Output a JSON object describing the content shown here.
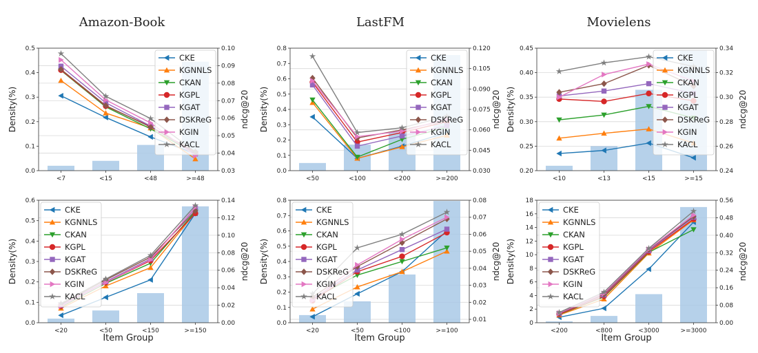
{
  "figure": {
    "column_titles": [
      "Amazon-Book",
      "LastFM",
      "Movielens"
    ],
    "xlabel": "Item Group",
    "ylabel_left": "Density(%)",
    "ylabel_right": "ndcg@20",
    "series_colors": {
      "CKE": "#1f77b4",
      "KGNNLS": "#ff7f0e",
      "CKAN": "#2ca02c",
      "KGPL": "#d62728",
      "KGAT": "#9467bd",
      "DSKReG": "#8c564b",
      "KGIN": "#e377c2",
      "KACL": "#7f7f7f"
    },
    "bar_color": "#a9c9e6"
  },
  "chart_data": [
    {
      "type": "bar+line",
      "dataset": "Amazon-Book",
      "row": "top",
      "categories": [
        "<7",
        "<15",
        "<48",
        ">=48"
      ],
      "bars": [
        0.02,
        0.04,
        0.105,
        0.445
      ],
      "ylim": [
        0,
        0.5
      ],
      "yticks": [
        "0.0",
        "0.1",
        "0.2",
        "0.3",
        "0.4",
        "0.5"
      ],
      "y2lim": [
        0.03,
        0.1
      ],
      "y2ticks": [
        "0.03",
        "0.04",
        "0.05",
        "0.06",
        "0.07",
        "0.08",
        "0.09",
        "0.10"
      ],
      "series": [
        {
          "name": "CKE",
          "values": [
            0.0728,
            0.0604,
            0.0493,
            0.0396
          ]
        },
        {
          "name": "KGNNLS",
          "values": [
            0.0815,
            0.0629,
            0.0544,
            0.0367
          ]
        },
        {
          "name": "CKAN",
          "values": [
            0.0873,
            0.0664,
            0.0539,
            0.0397
          ]
        },
        {
          "name": "KGPL",
          "values": [
            0.0875,
            0.0669,
            0.0552,
            0.0399
          ]
        },
        {
          "name": "KGAT",
          "values": [
            0.0897,
            0.0688,
            0.0555,
            0.0397
          ]
        },
        {
          "name": "DSKReG",
          "values": [
            0.0879,
            0.0672,
            0.0549,
            0.0407
          ]
        },
        {
          "name": "KGIN",
          "values": [
            0.0933,
            0.0704,
            0.0573,
            0.0385
          ]
        },
        {
          "name": "KACL",
          "values": [
            0.0969,
            0.0725,
            0.0598,
            0.0407
          ]
        }
      ],
      "legend": "top-right"
    },
    {
      "type": "bar+line",
      "dataset": "LastFM",
      "row": "top",
      "categories": [
        "<50",
        "<100",
        "<200",
        ">=200"
      ],
      "bars": [
        0.05,
        0.17,
        0.25,
        0.755
      ],
      "ylim": [
        0,
        0.8
      ],
      "yticks": [
        "0.0",
        "0.1",
        "0.2",
        "0.3",
        "0.4",
        "0.5",
        "0.6",
        "0.7",
        "0.8"
      ],
      "y2lim": [
        0.03,
        0.12
      ],
      "y2ticks": [
        "0.030",
        "0.045",
        "0.060",
        "0.075",
        "0.090",
        "0.105",
        "0.120"
      ],
      "series": [
        {
          "name": "CKE",
          "values": [
            0.0695,
            0.039,
            0.048,
            0.058
          ]
        },
        {
          "name": "KGNNLS",
          "values": [
            0.08,
            0.039,
            0.0475,
            0.056
          ]
        },
        {
          "name": "CKAN",
          "values": [
            0.082,
            0.04,
            0.053,
            0.062
          ]
        },
        {
          "name": "KGPL",
          "values": [
            0.095,
            0.051,
            0.058,
            0.066
          ]
        },
        {
          "name": "KGAT",
          "values": [
            0.093,
            0.048,
            0.0555,
            0.063
          ]
        },
        {
          "name": "DSKReG",
          "values": [
            0.098,
            0.054,
            0.06,
            0.067
          ]
        },
        {
          "name": "KGIN",
          "values": [
            0.096,
            0.055,
            0.059,
            0.068
          ]
        },
        {
          "name": "KACL",
          "values": [
            0.114,
            0.058,
            0.0615,
            0.07
          ]
        }
      ],
      "legend": "top-right"
    },
    {
      "type": "bar+line",
      "dataset": "Movielens",
      "row": "top",
      "categories": [
        "<10",
        "<13",
        "<15",
        ">=15"
      ],
      "bars": [
        0.21,
        0.25,
        0.365,
        0.445
      ],
      "ylim": [
        0.2,
        0.45
      ],
      "yticks": [
        "0.20",
        "0.25",
        "0.30",
        "0.35",
        "0.40",
        "0.45"
      ],
      "y2lim": [
        0.24,
        0.34
      ],
      "y2ticks": [
        "0.24",
        "0.26",
        "0.28",
        "0.30",
        "0.32",
        "0.34"
      ],
      "series": [
        {
          "name": "CKE",
          "values": [
            0.254,
            0.2565,
            0.2625,
            0.2505
          ]
        },
        {
          "name": "KGNNLS",
          "values": [
            0.2665,
            0.2705,
            0.274,
            0.2625
          ]
        },
        {
          "name": "CKAN",
          "values": [
            0.2815,
            0.2855,
            0.2925,
            0.283
          ]
        },
        {
          "name": "KGPL",
          "values": [
            0.2985,
            0.2965,
            0.303,
            0.297
          ]
        },
        {
          "name": "KGAT",
          "values": [
            0.301,
            0.305,
            0.311,
            0.303
          ]
        },
        {
          "name": "DSKReG",
          "values": [
            0.304,
            0.311,
            0.326,
            0.309
          ]
        },
        {
          "name": "KGIN",
          "values": [
            0.3,
            0.3185,
            0.327,
            0.313
          ]
        },
        {
          "name": "KACL",
          "values": [
            0.321,
            0.328,
            0.333,
            0.325
          ]
        }
      ],
      "legend": "top-right"
    },
    {
      "type": "bar+line",
      "dataset": "Amazon-Book",
      "row": "bottom",
      "categories": [
        "<20",
        "<50",
        "<150",
        ">=150"
      ],
      "bars": [
        0.02,
        0.06,
        0.145,
        0.57
      ],
      "xlabel": "Item Group",
      "ylim": [
        0,
        0.6
      ],
      "yticks": [
        "0.0",
        "0.1",
        "0.2",
        "0.3",
        "0.4",
        "0.5",
        "0.6"
      ],
      "y2lim": [
        0,
        0.14
      ],
      "y2ticks": [
        "0.00",
        "0.02",
        "0.04",
        "0.06",
        "0.08",
        "0.10",
        "0.12",
        "0.14"
      ],
      "series": [
        {
          "name": "CKE",
          "values": [
            0.0085,
            0.029,
            0.049,
            0.125
          ]
        },
        {
          "name": "KGNNLS",
          "values": [
            0.0165,
            0.042,
            0.063,
            0.126
          ]
        },
        {
          "name": "CKAN",
          "values": [
            0.018,
            0.045,
            0.068,
            0.127
          ]
        },
        {
          "name": "KGPL",
          "values": [
            0.019,
            0.046,
            0.071,
            0.125
          ]
        },
        {
          "name": "KGAT",
          "values": [
            0.02,
            0.047,
            0.073,
            0.131
          ]
        },
        {
          "name": "DSKReG",
          "values": [
            0.021,
            0.049,
            0.075,
            0.128
          ]
        },
        {
          "name": "KGIN",
          "values": [
            0.019,
            0.046,
            0.072,
            0.132
          ]
        },
        {
          "name": "KACL",
          "values": [
            0.022,
            0.05,
            0.077,
            0.134
          ]
        }
      ],
      "legend": "top-left"
    },
    {
      "type": "bar+line",
      "dataset": "LastFM",
      "row": "bottom",
      "categories": [
        "<20",
        "<50",
        "<100",
        ">=100"
      ],
      "bars": [
        0.05,
        0.14,
        0.315,
        0.795
      ],
      "xlabel": "Item Group",
      "ylim": [
        0,
        0.8
      ],
      "yticks": [
        "0.0",
        "0.1",
        "0.2",
        "0.3",
        "0.4",
        "0.5",
        "0.6",
        "0.7",
        "0.8"
      ],
      "y2lim": [
        0.008,
        0.08
      ],
      "y2ticks": [
        "0.01",
        "0.02",
        "0.03",
        "0.04",
        "0.05",
        "0.06",
        "0.07",
        "0.08"
      ],
      "series": [
        {
          "name": "CKE",
          "values": [
            0.0115,
            0.025,
            0.038,
            0.062
          ]
        },
        {
          "name": "KGNNLS",
          "values": [
            0.016,
            0.029,
            0.038,
            0.05
          ]
        },
        {
          "name": "CKAN",
          "values": [
            0.022,
            0.036,
            0.044,
            0.052
          ]
        },
        {
          "name": "KGPL",
          "values": [
            0.021,
            0.038,
            0.047,
            0.061
          ]
        },
        {
          "name": "KGAT",
          "values": [
            0.022,
            0.039,
            0.051,
            0.063
          ]
        },
        {
          "name": "DSKReG",
          "values": [
            0.023,
            0.041,
            0.055,
            0.069
          ]
        },
        {
          "name": "KGIN",
          "values": [
            0.021,
            0.042,
            0.057,
            0.07
          ]
        },
        {
          "name": "KACL",
          "values": [
            0.025,
            0.052,
            0.06,
            0.073
          ]
        }
      ],
      "legend": "top-left"
    },
    {
      "type": "bar+line",
      "dataset": "Movielens",
      "row": "bottom",
      "categories": [
        "<200",
        "<800",
        "<3000",
        ">=3000"
      ],
      "bars": [
        0.2,
        1.0,
        4.2,
        17.0
      ],
      "xlabel": "Item Group",
      "ylim": [
        0,
        18
      ],
      "yticks": [
        "0",
        "2",
        "4",
        "6",
        "8",
        "10",
        "12",
        "14",
        "16",
        "18"
      ],
      "y2lim": [
        0,
        0.56
      ],
      "y2ticks": [
        "0.00",
        "0.08",
        "0.16",
        "0.24",
        "0.32",
        "0.40",
        "0.48",
        "0.56"
      ],
      "series": [
        {
          "name": "CKE",
          "values": [
            0.025,
            0.066,
            0.245,
            0.46
          ]
        },
        {
          "name": "KGNNLS",
          "values": [
            0.035,
            0.108,
            0.318,
            0.47
          ]
        },
        {
          "name": "CKAN",
          "values": [
            0.038,
            0.118,
            0.322,
            0.426
          ]
        },
        {
          "name": "KGPL",
          "values": [
            0.039,
            0.121,
            0.325,
            0.474
          ]
        },
        {
          "name": "KGAT",
          "values": [
            0.042,
            0.127,
            0.33,
            0.482
          ]
        },
        {
          "name": "DSKReG",
          "values": [
            0.043,
            0.13,
            0.334,
            0.486
          ]
        },
        {
          "name": "KGIN",
          "values": [
            0.044,
            0.134,
            0.336,
            0.492
          ]
        },
        {
          "name": "KACL",
          "values": [
            0.047,
            0.14,
            0.34,
            0.51
          ]
        }
      ],
      "legend": "top-left"
    }
  ]
}
